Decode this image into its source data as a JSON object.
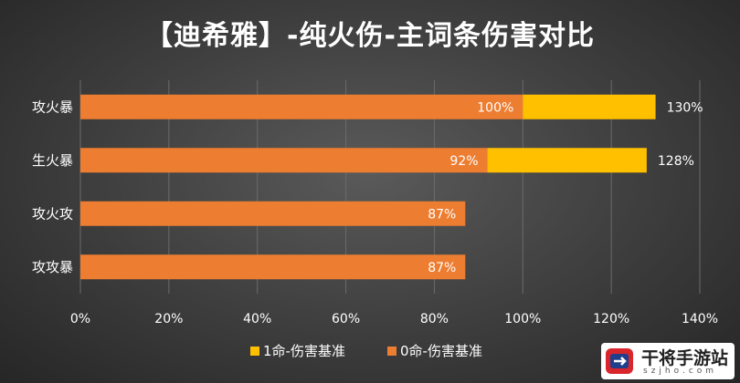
{
  "chart_data": {
    "type": "bar",
    "orientation": "horizontal",
    "stacked": true,
    "title": "【迪希雅】-纯火伤-主词条伤害对比",
    "categories": [
      "攻火暴",
      "生火暴",
      "攻火攻",
      "攻攻暴"
    ],
    "series": [
      {
        "name": "0命-伤害基准",
        "values": [
          100,
          92,
          87,
          87
        ],
        "labels": [
          "100%",
          "92%",
          "87%",
          "87%"
        ],
        "color": "#ed7d31"
      },
      {
        "name": "1命-伤害基准",
        "values": [
          30,
          36,
          0,
          0
        ],
        "color": "#ffc000"
      }
    ],
    "total_labels": [
      "130%",
      "128%",
      "",
      ""
    ],
    "x_ticks": [
      "0%",
      "20%",
      "40%",
      "60%",
      "80%",
      "100%",
      "120%",
      "140%"
    ],
    "xlim": [
      0,
      140
    ],
    "grid": true,
    "legend_position": "bottom"
  },
  "watermark": {
    "text": "干将手游站",
    "sub": "szjho.com"
  },
  "colors": {
    "background": "#3a3a3a",
    "grid": "#6b6b6b",
    "axis_text": "#ffffff"
  }
}
